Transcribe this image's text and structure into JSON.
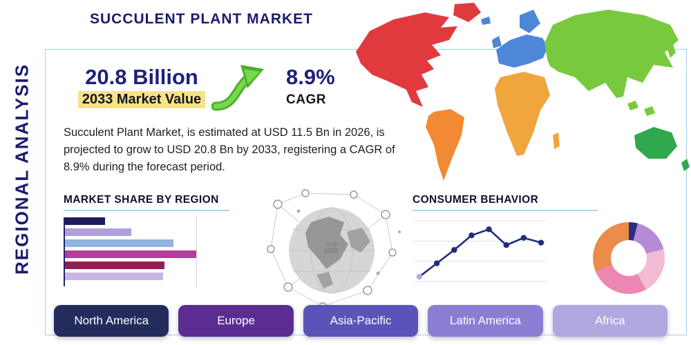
{
  "page": {
    "title": "SUCCULENT PLANT MARKET",
    "side_label": "REGIONAL ANALYSIS",
    "frame_border_color": "#9fd0e8",
    "navy": "#1b1b6e"
  },
  "stats": {
    "market_value": "20.8 Billion",
    "market_value_label": "2033 Market Value",
    "cagr_value": "8.9%",
    "cagr_label": "CAGR",
    "description": "Succulent Plant Market, is estimated at USD 11.5 Bn in 2026, is projected to grow to USD 20.8 Bn by 2033, registering a CAGR of 8.9% during the forecast period."
  },
  "sections": {
    "market_share": "MARKET SHARE BY REGION",
    "consumer_behavior": "CONSUMER BEHAVIOR"
  },
  "region_buttons": [
    {
      "label": "North America",
      "color": "#232c5c"
    },
    {
      "label": "Europe",
      "color": "#5b2d92"
    },
    {
      "label": "Asia-Pacific",
      "color": "#5a54b8"
    },
    {
      "label": "Latin America",
      "color": "#8a7ed3"
    },
    {
      "label": "Africa",
      "color": "#b2a8e0"
    }
  ],
  "chart_data": [
    {
      "name": "market_share_by_region",
      "type": "bar",
      "orientation": "horizontal",
      "title": "MARKET SHARE BY REGION",
      "categories": [
        "",
        "",
        "",
        "",
        "",
        ""
      ],
      "values": [
        30,
        50,
        82,
        99,
        75,
        74
      ],
      "unit": "percent-of-max-bar-width",
      "colors": [
        "#1b1c5e",
        "#b1a0dc",
        "#8fb4e2",
        "#b53d9b",
        "#8e2152",
        "#c9b6e8"
      ],
      "axis_color": "#23236b"
    },
    {
      "name": "consumer_behavior_trend",
      "type": "line",
      "title": "CONSUMER BEHAVIOR",
      "x": [
        1,
        2,
        3,
        4,
        5,
        6,
        7,
        8
      ],
      "values": [
        0.8,
        3.0,
        5.2,
        7.6,
        8.6,
        6.0,
        7.2,
        6.4
      ],
      "ylim": [
        0,
        10
      ],
      "grid": "horizontal",
      "color": "#1f2d7a",
      "first_marker_color": "#b9a7e6"
    },
    {
      "name": "regional_share_donut",
      "type": "pie",
      "donut": true,
      "start_angle_deg": 0,
      "values": [
        4,
        17,
        21,
        27,
        31
      ],
      "colors": [
        "#2b2e7e",
        "#b58ad6",
        "#f2bcd4",
        "#ee86b2",
        "#eb8c4a"
      ]
    }
  ]
}
